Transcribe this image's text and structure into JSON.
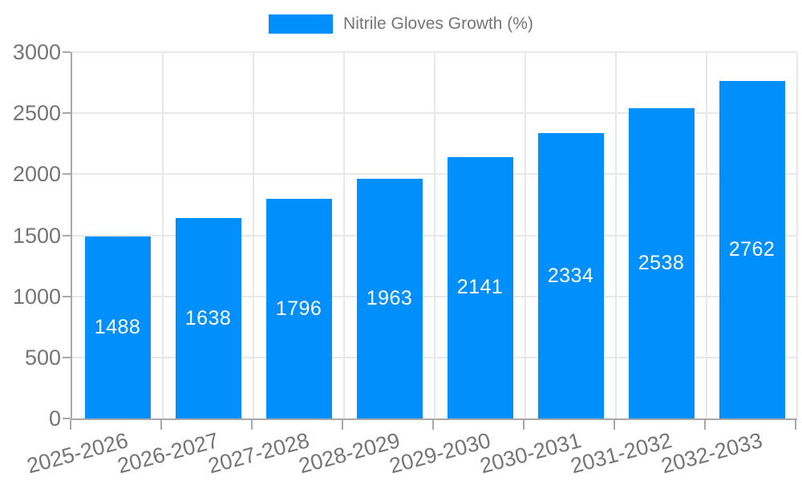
{
  "chart_data": {
    "type": "bar",
    "title": "",
    "legend": "Nitrile Gloves Growth (%)",
    "legend_position": "top",
    "categories": [
      "2025-2026",
      "2026-2027",
      "2027-2028",
      "2028-2029",
      "2029-2030",
      "2030-2031",
      "2031-2032",
      "2032-2033"
    ],
    "values": [
      1488,
      1638,
      1796,
      1963,
      2141,
      2334,
      2538,
      2762
    ],
    "ylim": [
      0,
      3000
    ],
    "yticks": [
      0,
      500,
      1000,
      1500,
      2000,
      2500,
      3000
    ],
    "grid": true,
    "x_label_rotation_deg": -15,
    "colors": {
      "bar": "#008ffb",
      "bar_value_label": "#ffffff",
      "axis_line": "#a8a8a8",
      "grid_line": "#e8e8e8",
      "tick_label": "#757575",
      "legend_text": "#757575",
      "background": "#ffffff"
    }
  }
}
